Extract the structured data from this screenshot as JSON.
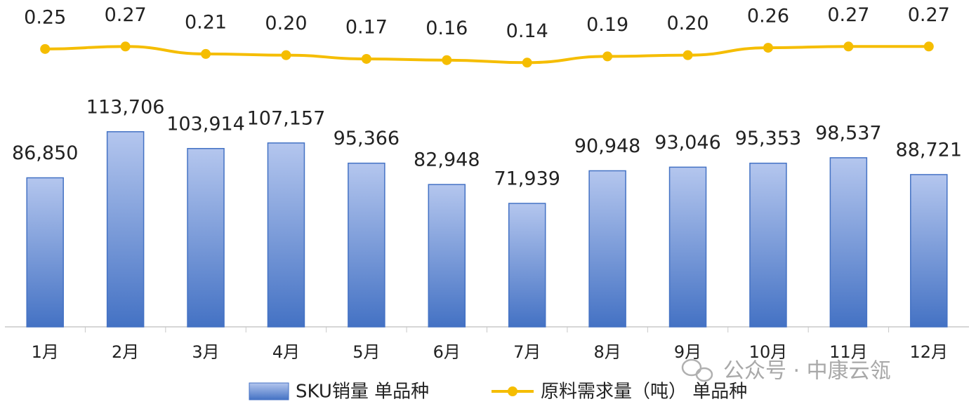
{
  "chart_data": {
    "type": "combo",
    "categories": [
      "1月",
      "2月",
      "3月",
      "4月",
      "5月",
      "6月",
      "7月",
      "8月",
      "9月",
      "10月",
      "11月",
      "12月"
    ],
    "series": [
      {
        "name": "SKU销量 单品种",
        "type": "bar",
        "color": "#4472c4",
        "values": [
          86850,
          113706,
          103914,
          107157,
          95366,
          82948,
          71939,
          90948,
          93046,
          95353,
          98537,
          88721
        ],
        "value_labels": [
          "86,850",
          "113,706",
          "103,914",
          "107,157",
          "95,366",
          "82,948",
          "71,939",
          "90,948",
          "93,046",
          "95,353",
          "98,537",
          "88,721"
        ]
      },
      {
        "name": "原料需求量（吨） 单品种",
        "type": "line",
        "axis": "y2",
        "color": "#f5bd00",
        "values": [
          0.25,
          0.27,
          0.21,
          0.2,
          0.17,
          0.16,
          0.14,
          0.19,
          0.2,
          0.26,
          0.27,
          0.27
        ],
        "value_labels": [
          "0.25",
          "0.27",
          "0.21",
          "0.20",
          "0.17",
          "0.16",
          "0.14",
          "0.19",
          "0.20",
          "0.26",
          "0.27",
          "0.27"
        ]
      }
    ],
    "ylim": [
      0,
      150000
    ],
    "y2lim": [
      0,
      0.3
    ],
    "legend": "bottom",
    "annotations": [
      "公众号 · 中康云瓴"
    ]
  }
}
